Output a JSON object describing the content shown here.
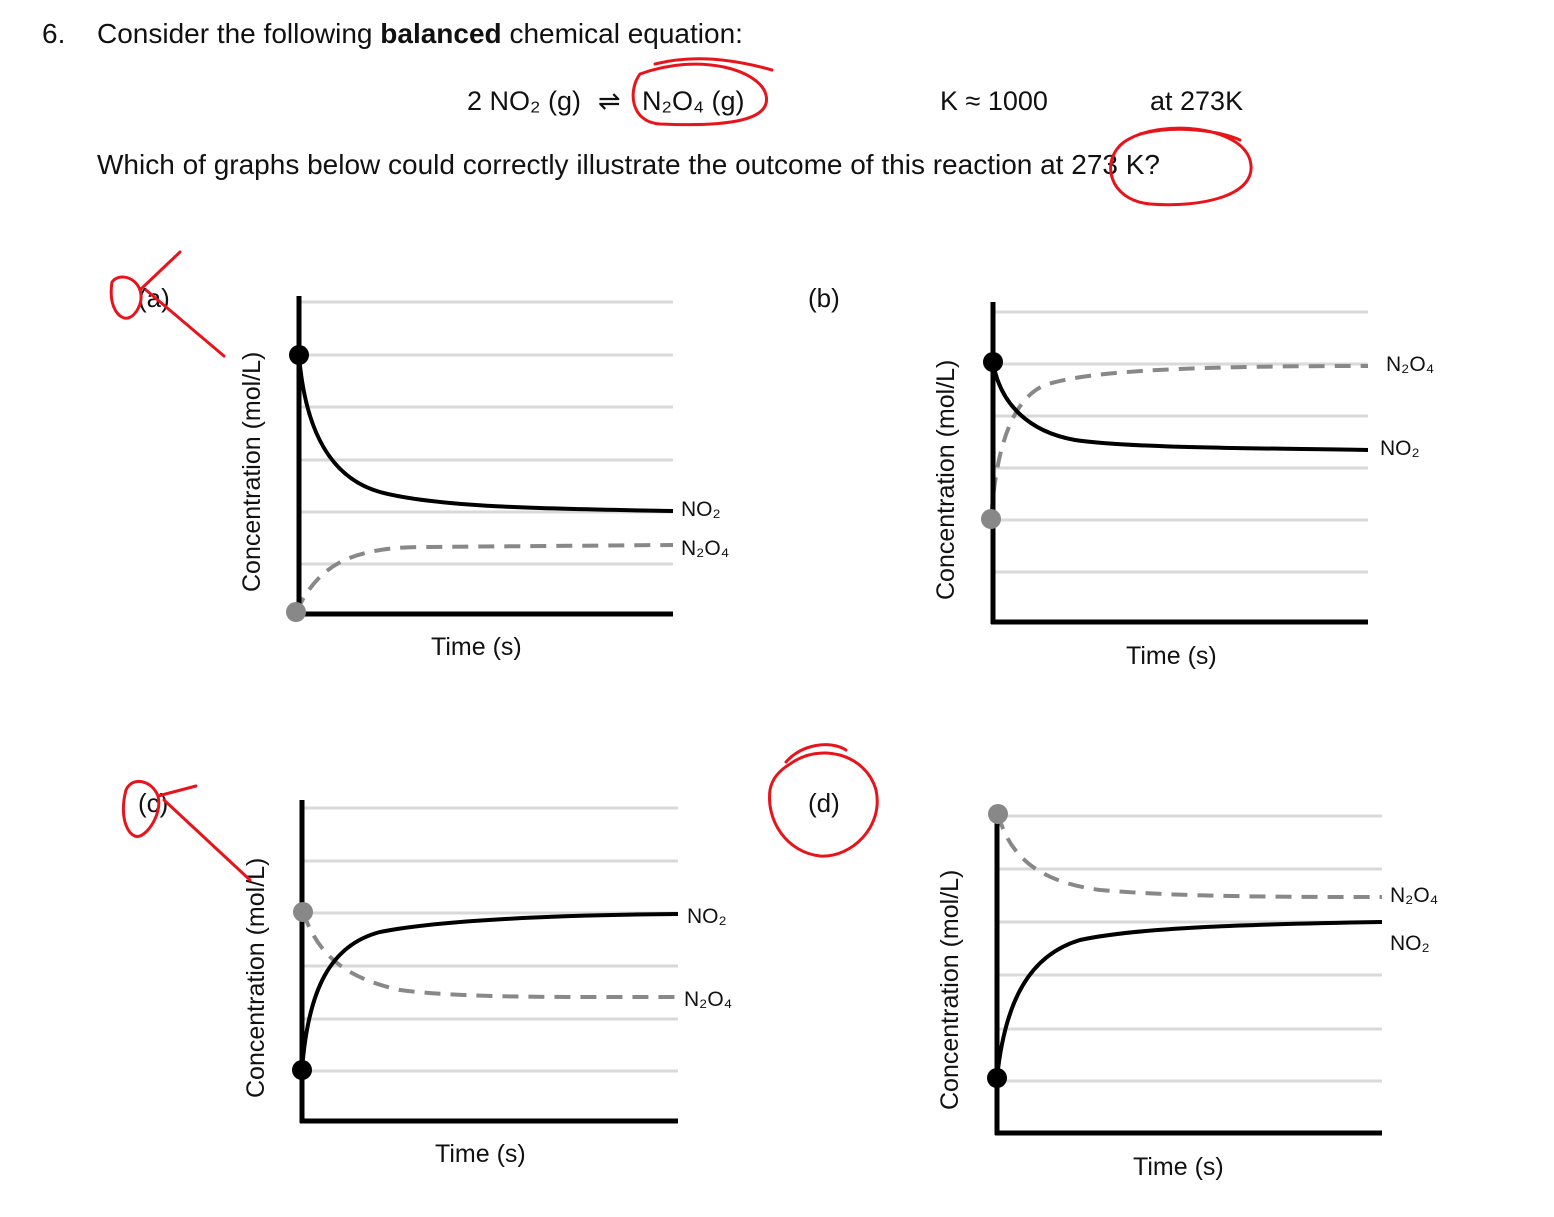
{
  "question": {
    "number": "6.",
    "prefix": "Consider the following ",
    "bold": "balanced",
    "suffix": " chemical equation:",
    "equation": {
      "reactant": "2 NO₂ (g)",
      "arrow": "⇌",
      "product": "N₂O₄ (g)",
      "k": "K ≈ 1000",
      "temp": "at 273K"
    },
    "prompt": "Which of graphs below could correctly illustrate the outcome of this reaction at 273 K?"
  },
  "graphs": [
    {
      "label": "(a)",
      "xlabel": "Time (s)",
      "ylabel": "Concentration (mol/L)",
      "no2_label": "NO₂",
      "n2o4_label": "N₂O₄"
    },
    {
      "label": "(b)",
      "xlabel": "Time (s)",
      "ylabel": "Concentration (mol/L)",
      "no2_label": "NO₂",
      "n2o4_label": "N₂O₄"
    },
    {
      "label": "(c)",
      "xlabel": "Time (s)",
      "ylabel": "Concentration (mol/L)",
      "no2_label": "NO₂",
      "n2o4_label": "N₂O₄"
    },
    {
      "label": "(d)",
      "xlabel": "Time (s)",
      "ylabel": "Concentration (mol/L)",
      "no2_label": "NO₂",
      "n2o4_label": "N₂O₄"
    }
  ],
  "colors": {
    "annotation": "#e8141c",
    "no2": "#000000",
    "n2o4": "#888888",
    "grid": "#d9d9d9"
  }
}
